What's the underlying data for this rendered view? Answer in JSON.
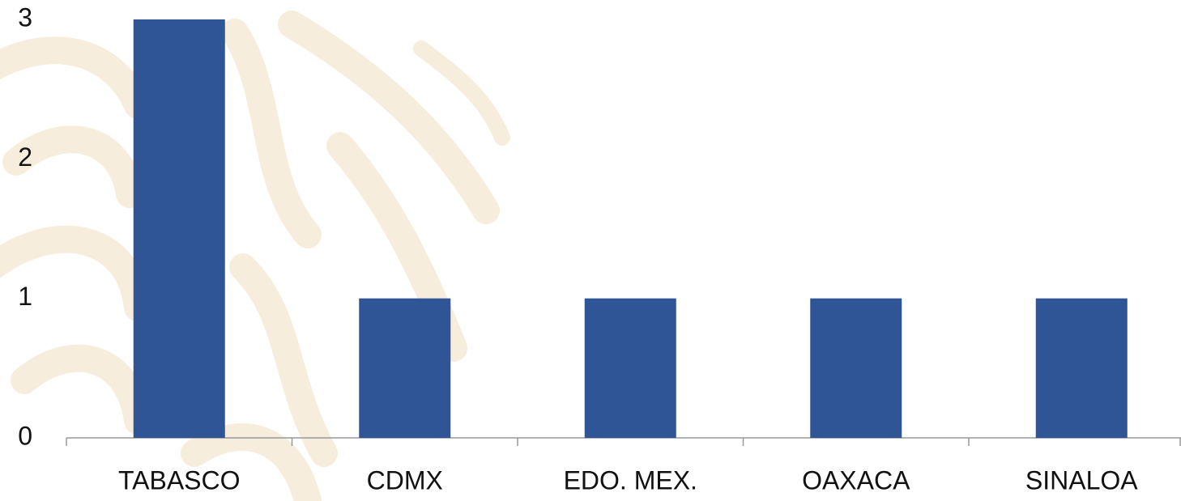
{
  "chart_data": {
    "type": "bar",
    "categories": [
      "TABASCO",
      "CDMX",
      "EDO. MEX.",
      "OAXACA",
      "SINALOA"
    ],
    "values": [
      3,
      1,
      1,
      1,
      1
    ],
    "color": "#2f5597",
    "ylim": [
      0,
      3
    ],
    "yticks": [
      0,
      1,
      2,
      3
    ],
    "grid": false
  }
}
